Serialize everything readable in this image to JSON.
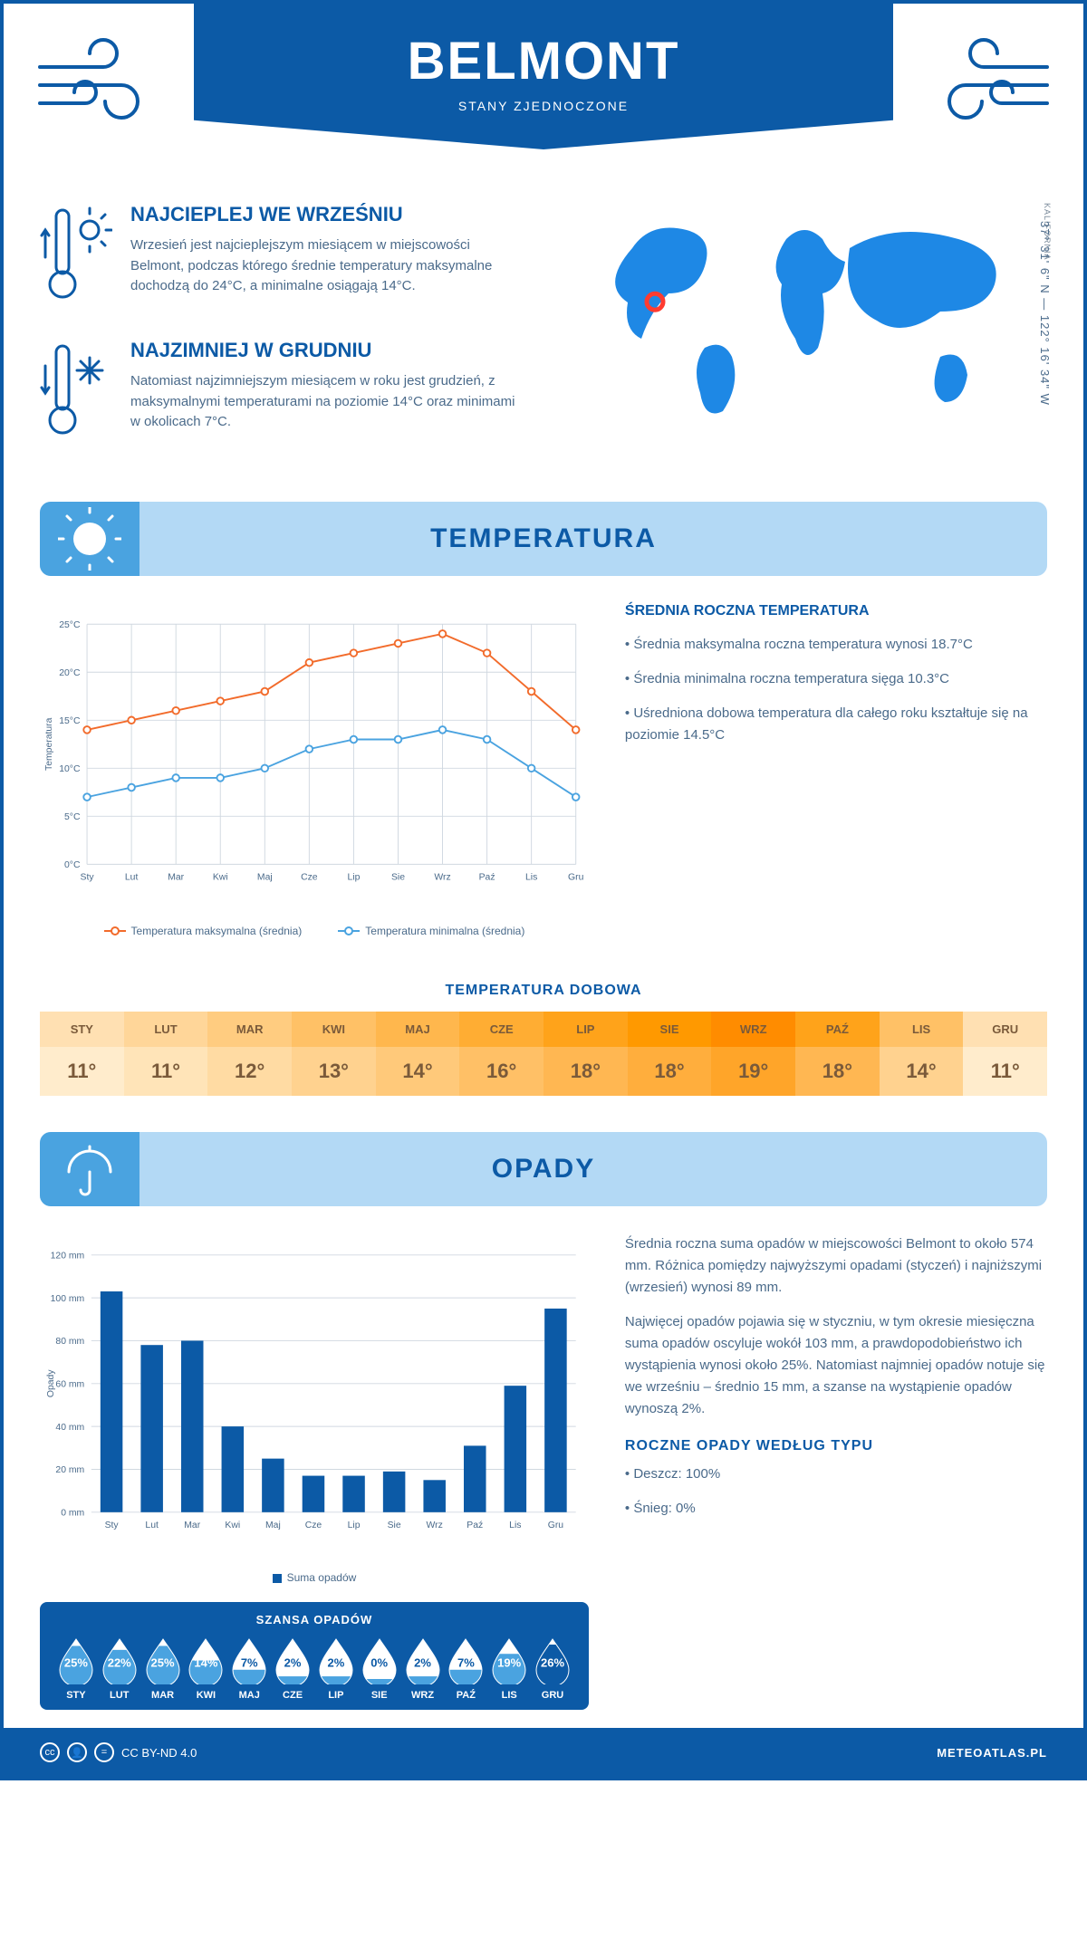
{
  "header": {
    "city": "BELMONT",
    "country": "STANY ZJEDNOCZONE"
  },
  "coords": "37° 31' 6\" N — 122° 16' 34\" W",
  "region": "KALIFORNIA",
  "map": {
    "marker": {
      "cx_pct": 17,
      "cy_pct": 42
    },
    "marker_color": "#ff3b30",
    "land_color": "#1e88e5"
  },
  "facts": {
    "warm": {
      "title": "NAJCIEPLEJ WE WRZEŚNIU",
      "text": "Wrzesień jest najcieplejszym miesiącem w miejscowości Belmont, podczas którego średnie temperatury maksymalne dochodzą do 24°C, a minimalne osiągają 14°C."
    },
    "cold": {
      "title": "NAJZIMNIEJ W GRUDNIU",
      "text": "Natomiast najzimniejszym miesiącem w roku jest grudzień, z maksymalnymi temperaturami na poziomie 14°C oraz minimami w okolicach 7°C."
    }
  },
  "temperature": {
    "section_title": "TEMPERATURA",
    "chart": {
      "type": "line",
      "months": [
        "Sty",
        "Lut",
        "Mar",
        "Kwi",
        "Maj",
        "Cze",
        "Lip",
        "Sie",
        "Wrz",
        "Paź",
        "Lis",
        "Gru"
      ],
      "series": [
        {
          "name": "Temperatura maksymalna (średnia)",
          "color": "#f26b2b",
          "values": [
            14,
            15,
            16,
            17,
            18,
            21,
            22,
            23,
            24,
            22,
            18,
            14
          ]
        },
        {
          "name": "Temperatura minimalna (średnia)",
          "color": "#4aa3e0",
          "values": [
            7,
            8,
            9,
            9,
            10,
            12,
            13,
            13,
            14,
            13,
            10,
            7
          ]
        }
      ],
      "ylabel": "Temperatura",
      "ylim": [
        0,
        25
      ],
      "ytick_step": 5,
      "ytick_suffix": "°C",
      "grid_color": "#d0d8e0",
      "axis_color": "#4a6a8a",
      "background_color": "#ffffff",
      "label_fontsize": 11,
      "line_width": 2,
      "marker_radius": 4
    },
    "info": {
      "title": "ŚREDNIA ROCZNA TEMPERATURA",
      "bullets": [
        "Średnia maksymalna roczna temperatura wynosi 18.7°C",
        "Średnia minimalna roczna temperatura sięga 10.3°C",
        "Uśredniona dobowa temperatura dla całego roku kształtuje się na poziomie 14.5°C"
      ]
    },
    "daily_title": "TEMPERATURA DOBOWA",
    "daily": {
      "months": [
        "STY",
        "LUT",
        "MAR",
        "KWI",
        "MAJ",
        "CZE",
        "LIP",
        "SIE",
        "WRZ",
        "PAŹ",
        "LIS",
        "GRU"
      ],
      "values": [
        "11°",
        "11°",
        "12°",
        "13°",
        "14°",
        "16°",
        "18°",
        "18°",
        "19°",
        "18°",
        "14°",
        "11°"
      ],
      "header_colors": [
        "#ffe0b2",
        "#ffd699",
        "#ffcc80",
        "#ffc166",
        "#ffb74d",
        "#ffad33",
        "#ffa31a",
        "#ff9900",
        "#ff8c00",
        "#ffa31a",
        "#ffc166",
        "#ffe0b2"
      ],
      "value_colors": [
        "#ffeccc",
        "#ffe4b8",
        "#ffdba3",
        "#ffd28f",
        "#ffc97a",
        "#ffc066",
        "#ffb752",
        "#ffae3d",
        "#ffa529",
        "#ffb752",
        "#ffd28f",
        "#ffeccc"
      ],
      "text_color": "#7a5a3a"
    }
  },
  "precip": {
    "section_title": "OPADY",
    "chart": {
      "type": "bar",
      "months": [
        "Sty",
        "Lut",
        "Mar",
        "Kwi",
        "Maj",
        "Cze",
        "Lip",
        "Sie",
        "Wrz",
        "Paź",
        "Lis",
        "Gru"
      ],
      "values": [
        103,
        78,
        80,
        40,
        25,
        17,
        17,
        19,
        15,
        31,
        59,
        95
      ],
      "ylabel": "Opady",
      "ylim": [
        0,
        120
      ],
      "ytick_step": 20,
      "ytick_suffix": " mm",
      "bar_color": "#0c5aa6",
      "grid_color": "#d0d8e0",
      "axis_color": "#4a6a8a",
      "label_fontsize": 11,
      "bar_width_ratio": 0.55,
      "legend_label": "Suma opadów"
    },
    "info": {
      "p1": "Średnia roczna suma opadów w miejscowości Belmont to około 574 mm. Różnica pomiędzy najwyższymi opadami (styczeń) i najniższymi (wrzesień) wynosi 89 mm.",
      "p2": "Najwięcej opadów pojawia się w styczniu, w tym okresie miesięczna suma opadów oscyluje wokół 103 mm, a prawdopodobieństwo ich wystąpienia wynosi około 25%. Natomiast najmniej opadów notuje się we wrześniu – średnio 15 mm, a szanse na wystąpienie opadów wynoszą 2%.",
      "type_title": "ROCZNE OPADY WEDŁUG TYPU",
      "type_bullets": [
        "Deszcz: 100%",
        "Śnieg: 0%"
      ]
    },
    "chance": {
      "title": "SZANSA OPADÓW",
      "months": [
        "STY",
        "LUT",
        "MAR",
        "KWI",
        "MAJ",
        "CZE",
        "LIP",
        "SIE",
        "WRZ",
        "PAŹ",
        "LIS",
        "GRU"
      ],
      "values": [
        25,
        22,
        25,
        14,
        7,
        2,
        2,
        0,
        2,
        7,
        19,
        26
      ],
      "fill_color": "#4aa3e0",
      "max_fill_color": "#0c5aa6",
      "outline_color": "#ffffff"
    }
  },
  "footer": {
    "license": "CC BY-ND 4.0",
    "site": "METEOATLAS.PL"
  },
  "palette": {
    "primary": "#0c5aa6",
    "secondary": "#4aa3e0",
    "light": "#b3d9f5",
    "text": "#4a6a8a"
  }
}
